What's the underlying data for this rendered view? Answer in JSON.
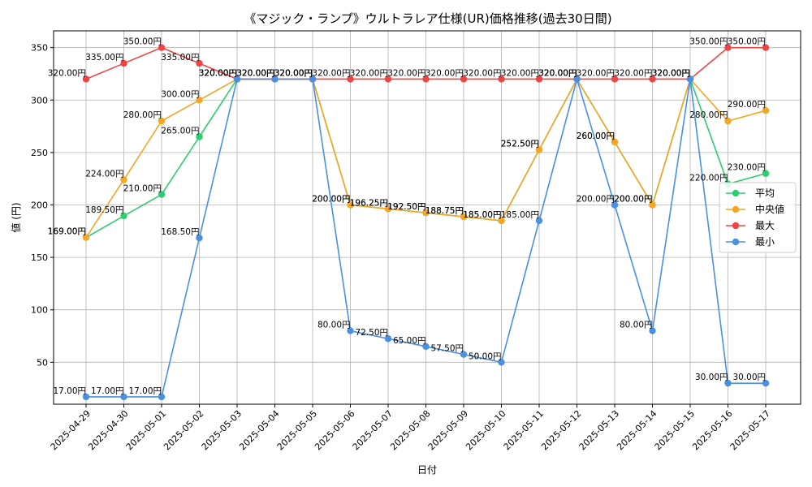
{
  "chart_data": {
    "type": "line",
    "title": "《マジック・ランプ》ウルトラレア仕様(UR)価格推移(過去30日間)",
    "xlabel": "日付",
    "ylabel": "値 (円)",
    "ylim": [
      10,
      366
    ],
    "yticks": [
      50,
      100,
      150,
      200,
      250,
      300,
      350
    ],
    "grid": true,
    "legend_position": "right",
    "label_suffix": "円",
    "categories": [
      "2025-04-29",
      "2025-04-30",
      "2025-05-01",
      "2025-05-02",
      "2025-05-03",
      "2025-05-04",
      "2025-05-05",
      "2025-05-06",
      "2025-05-07",
      "2025-05-08",
      "2025-05-09",
      "2025-05-10",
      "2025-05-11",
      "2025-05-12",
      "2025-05-13",
      "2025-05-14",
      "2025-05-15",
      "2025-05-16",
      "2025-05-17"
    ],
    "series": [
      {
        "name": "平均",
        "color": "#2ecc71",
        "values": [
          169,
          189.5,
          210,
          265,
          320,
          320,
          320,
          200,
          196.25,
          192.5,
          188.75,
          185,
          252.5,
          320,
          260,
          200,
          320,
          220,
          230
        ]
      },
      {
        "name": "中央値",
        "color": "#f5a623",
        "values": [
          169,
          224,
          280,
          300,
          320,
          320,
          320,
          200,
          196.25,
          192.5,
          188.75,
          185,
          252.5,
          320,
          260,
          200,
          320,
          280,
          290
        ]
      },
      {
        "name": "最大",
        "color": "#ef4444",
        "values": [
          320,
          335,
          350,
          335,
          320,
          320,
          320,
          320,
          320,
          320,
          320,
          320,
          320,
          320,
          320,
          320,
          320,
          350,
          350
        ]
      },
      {
        "name": "最小",
        "color": "#4a90e2",
        "values": [
          17,
          17,
          17,
          168.5,
          320,
          320,
          320,
          80,
          72.5,
          65,
          57.5,
          50,
          185,
          320,
          200,
          80,
          320,
          30,
          30
        ]
      }
    ]
  }
}
